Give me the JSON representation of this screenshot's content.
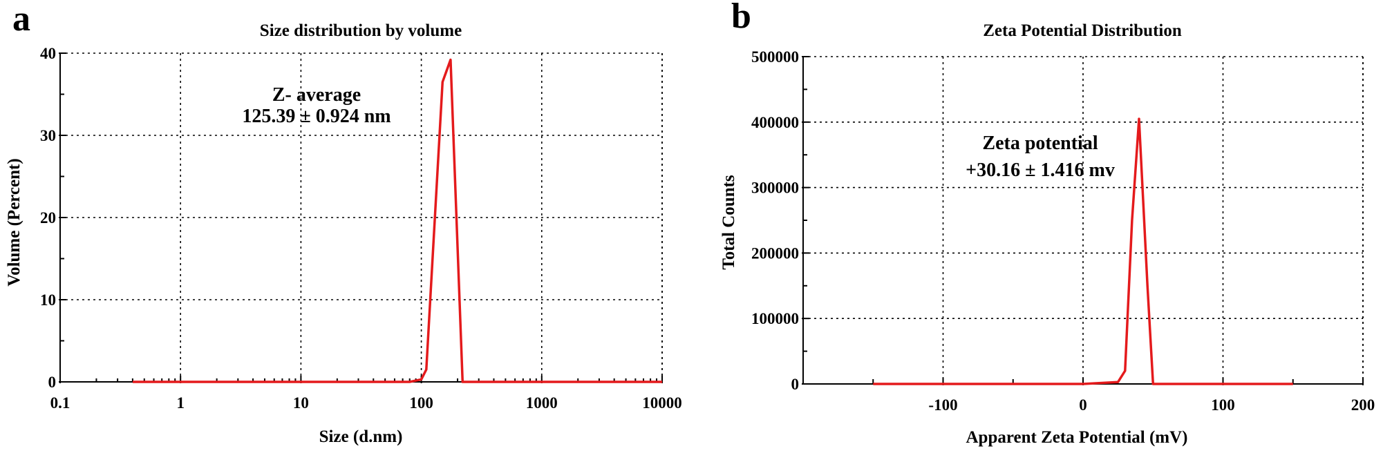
{
  "chart_data": [
    {
      "type": "line",
      "panel_label": "a",
      "title": "Size distribution by volume",
      "xlabel": "Size (d.nm)",
      "ylabel": "Volume (Percent)",
      "x_scale": "log",
      "xlim": [
        0.1,
        10000
      ],
      "ylim": [
        0,
        40
      ],
      "x_ticks": [
        0.1,
        1,
        10,
        100,
        1000,
        10000
      ],
      "x_tick_labels": [
        "0.1",
        "1",
        "10",
        "100",
        "1000",
        "10000"
      ],
      "y_ticks": [
        0,
        10,
        20,
        30,
        40
      ],
      "y_tick_labels": [
        "0",
        "10",
        "20",
        "30",
        "40"
      ],
      "grid": true,
      "color": "#e41a1c",
      "annotation": [
        "Z- average",
        "125.39 ± 0.924 nm"
      ],
      "series": [
        {
          "x": [
            0.4,
            1,
            10,
            80,
            100,
            110,
            150,
            175,
            220,
            10000
          ],
          "y": [
            0,
            0,
            0,
            0,
            0.3,
            1.5,
            36.5,
            39.2,
            0,
            0
          ]
        }
      ]
    },
    {
      "type": "line",
      "panel_label": "b",
      "title": "Zeta Potential Distribution",
      "xlabel": "Apparent Zeta Potential (mV)",
      "ylabel": "Total Counts",
      "x_scale": "linear",
      "xlim": [
        -200,
        200
      ],
      "ylim": [
        0,
        500000
      ],
      "x_ticks": [
        -100,
        0,
        100,
        200
      ],
      "x_tick_labels": [
        "-100",
        "0",
        "100",
        "200"
      ],
      "y_ticks": [
        0,
        100000,
        200000,
        300000,
        400000,
        500000
      ],
      "y_tick_labels": [
        "0",
        "100000",
        "200000",
        "300000",
        "400000",
        "500000"
      ],
      "grid": true,
      "color": "#e41a1c",
      "annotation": [
        "Zeta potential",
        "+30.16 ± 1.416 mv"
      ],
      "series": [
        {
          "x": [
            -150,
            0,
            25,
            30,
            35,
            40,
            46,
            50,
            150
          ],
          "y": [
            0,
            0,
            3000,
            20000,
            250000,
            405000,
            150000,
            0,
            0
          ]
        }
      ]
    }
  ]
}
